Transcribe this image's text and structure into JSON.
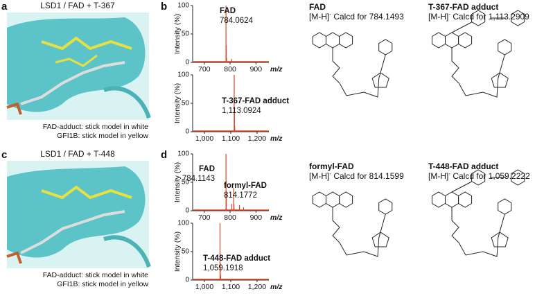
{
  "structure_panels": [
    {
      "letter": "a",
      "title": "LSD1 / FAD + T-367",
      "captions": [
        "FAD-adduct: stick model in white",
        "GFI1B: stick model in yellow"
      ]
    },
    {
      "letter": "c",
      "title": "LSD1 / FAD + T-448",
      "captions": [
        "FAD-adduct: stick model in white",
        "GFI1B: stick model in yellow"
      ]
    }
  ],
  "spectra_panels": [
    {
      "letter": "b",
      "plots": [
        {
          "ylabel": "Intensity (%)",
          "xlabel": "m/z",
          "ylim": [
            0,
            100
          ],
          "yticks": [
            0,
            50,
            100
          ],
          "xlim": [
            655,
            950
          ],
          "xticks": [
            700,
            800,
            900
          ],
          "peaks": {
            "x": [
              784.0624,
              785.07,
              786.07,
              806.05
            ],
            "values": [
              100,
              30,
              8,
              6
            ]
          },
          "labels": [
            {
              "name": "FAD",
              "mz": "784.0624"
            }
          ]
        },
        {
          "ylabel": "Intensity (%)",
          "xlabel": "m/z",
          "ylim": [
            0,
            100
          ],
          "yticks": [
            0,
            50,
            100
          ],
          "xlim": [
            955,
            1245
          ],
          "xticks": [
            {
              "value": 1000,
              "label": "1,000"
            },
            {
              "value": 1100,
              "label": "1,100"
            },
            {
              "value": 1200,
              "label": "1,200"
            }
          ],
          "peaks": {
            "x": [
              1113.0924,
              1114.1,
              1115.1
            ],
            "values": [
              100,
              35,
              10
            ]
          },
          "labels": [
            {
              "name": "T-367-FAD adduct",
              "mz": "1,113.0924"
            }
          ]
        }
      ]
    },
    {
      "letter": "d",
      "plots": [
        {
          "ylabel": "Intensity (%)",
          "xlabel": "m/z",
          "ylim": [
            0,
            100
          ],
          "yticks": [
            0,
            50,
            100
          ],
          "xlim": [
            655,
            950
          ],
          "xticks": [
            700,
            800,
            900
          ],
          "peaks": {
            "x": [
              784.1143,
              785.12,
              806.1,
              814.1772,
              815.18,
              836.16,
              852.1
            ],
            "values": [
              100,
              30,
              12,
              40,
              12,
              10,
              6
            ]
          },
          "labels": [
            {
              "name": "FAD",
              "mz": "784.1143"
            },
            {
              "name": "formyl-FAD",
              "mz": "814.1772"
            }
          ]
        },
        {
          "ylabel": "Intensity (%)",
          "xlabel": "m/z",
          "ylim": [
            0,
            100
          ],
          "yticks": [
            0,
            50,
            100
          ],
          "xlim": [
            955,
            1245
          ],
          "xticks": [
            {
              "value": 1000,
              "label": "1,000"
            },
            {
              "value": 1100,
              "label": "1,100"
            },
            {
              "value": 1200,
              "label": "1,200"
            }
          ],
          "peaks": {
            "x": [
              1059.1918,
              1060.2,
              1061.2
            ],
            "values": [
              100,
              30,
              8
            ]
          },
          "labels": [
            {
              "name": "T-448-FAD adduct",
              "mz": "1,059.1918"
            }
          ]
        }
      ]
    }
  ],
  "compounds": [
    {
      "name": "FAD",
      "ion": "[M-H]",
      "charge": "-",
      "calcd": " Calcd for 784.1493"
    },
    {
      "name": "T-367-FAD adduct",
      "ion": "[M-H]",
      "charge": "-",
      "calcd": " Calcd for 1,113.2909"
    },
    {
      "name": "formyl-FAD",
      "ion": "[M-H]",
      "charge": "-",
      "calcd": " Calcd for 814.1599"
    },
    {
      "name": "T-448-FAD adduct",
      "ion": "[M-H]",
      "charge": "-",
      "calcd": " Calcd for 1,059.2222"
    }
  ]
}
